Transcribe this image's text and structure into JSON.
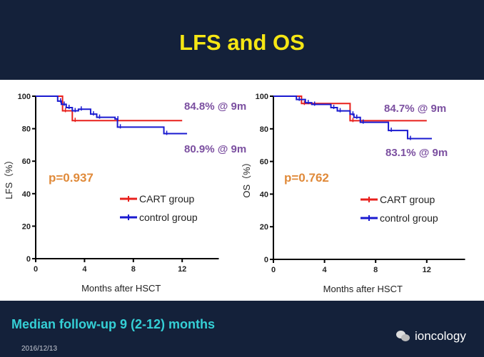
{
  "title": "LFS and OS",
  "footer": {
    "note": "Median follow-up 9 (2-12) months",
    "date": "2016/12/13",
    "brand": "ioncology"
  },
  "colors": {
    "cart": "#e8201c",
    "control": "#1a1ad0",
    "annotation": "#7b4fa0",
    "pvalue": "#e08a3a"
  },
  "chart_data": [
    {
      "type": "line",
      "subtype": "kaplan-meier",
      "ylabel": "LFS（%）",
      "xlabel": "Months after HSCT",
      "xlim": [
        0,
        15
      ],
      "ylim": [
        0,
        100
      ],
      "xticks": [
        0,
        4,
        8,
        12
      ],
      "yticks": [
        0,
        20,
        40,
        60,
        80,
        100
      ],
      "pvalue": "p=0.937",
      "annotations": [
        "84.8% @ 9m",
        "80.9% @ 9m"
      ],
      "legend": "center-right",
      "series": [
        {
          "name": "CART group",
          "steps": [
            [
              0,
              100
            ],
            [
              2.2,
              91
            ],
            [
              3,
              85
            ],
            [
              12,
              85
            ]
          ]
        },
        {
          "name": "control group",
          "steps": [
            [
              0,
              100
            ],
            [
              1.8,
              97
            ],
            [
              2.1,
              95
            ],
            [
              2.5,
              93
            ],
            [
              3,
              91
            ],
            [
              3.5,
              92
            ],
            [
              4.5,
              89
            ],
            [
              5,
              87
            ],
            [
              6.5,
              86
            ],
            [
              6.7,
              81
            ],
            [
              10.5,
              77
            ],
            [
              12.4,
              77
            ]
          ]
        }
      ]
    },
    {
      "type": "line",
      "subtype": "kaplan-meier",
      "ylabel": "OS（%）",
      "xlabel": "Months after HSCT",
      "xlim": [
        0,
        15
      ],
      "ylim": [
        0,
        100
      ],
      "xticks": [
        0,
        4,
        8,
        12
      ],
      "yticks": [
        0,
        20,
        40,
        60,
        80,
        100
      ],
      "pvalue": "p=0.762",
      "annotations": [
        "84.7% @ 9m",
        "83.1% @ 9m"
      ],
      "legend": "center-right",
      "series": [
        {
          "name": "CART group",
          "steps": [
            [
              0,
              100
            ],
            [
              2.2,
              95.5
            ],
            [
              6,
              85
            ],
            [
              12,
              85
            ]
          ]
        },
        {
          "name": "control group",
          "steps": [
            [
              0,
              100
            ],
            [
              1.8,
              98
            ],
            [
              2.5,
              96
            ],
            [
              3,
              95
            ],
            [
              4.5,
              93
            ],
            [
              5,
              91
            ],
            [
              6,
              89
            ],
            [
              6.3,
              87
            ],
            [
              6.8,
              84
            ],
            [
              9,
              79
            ],
            [
              10.5,
              74
            ],
            [
              12.4,
              74
            ]
          ]
        }
      ]
    }
  ]
}
